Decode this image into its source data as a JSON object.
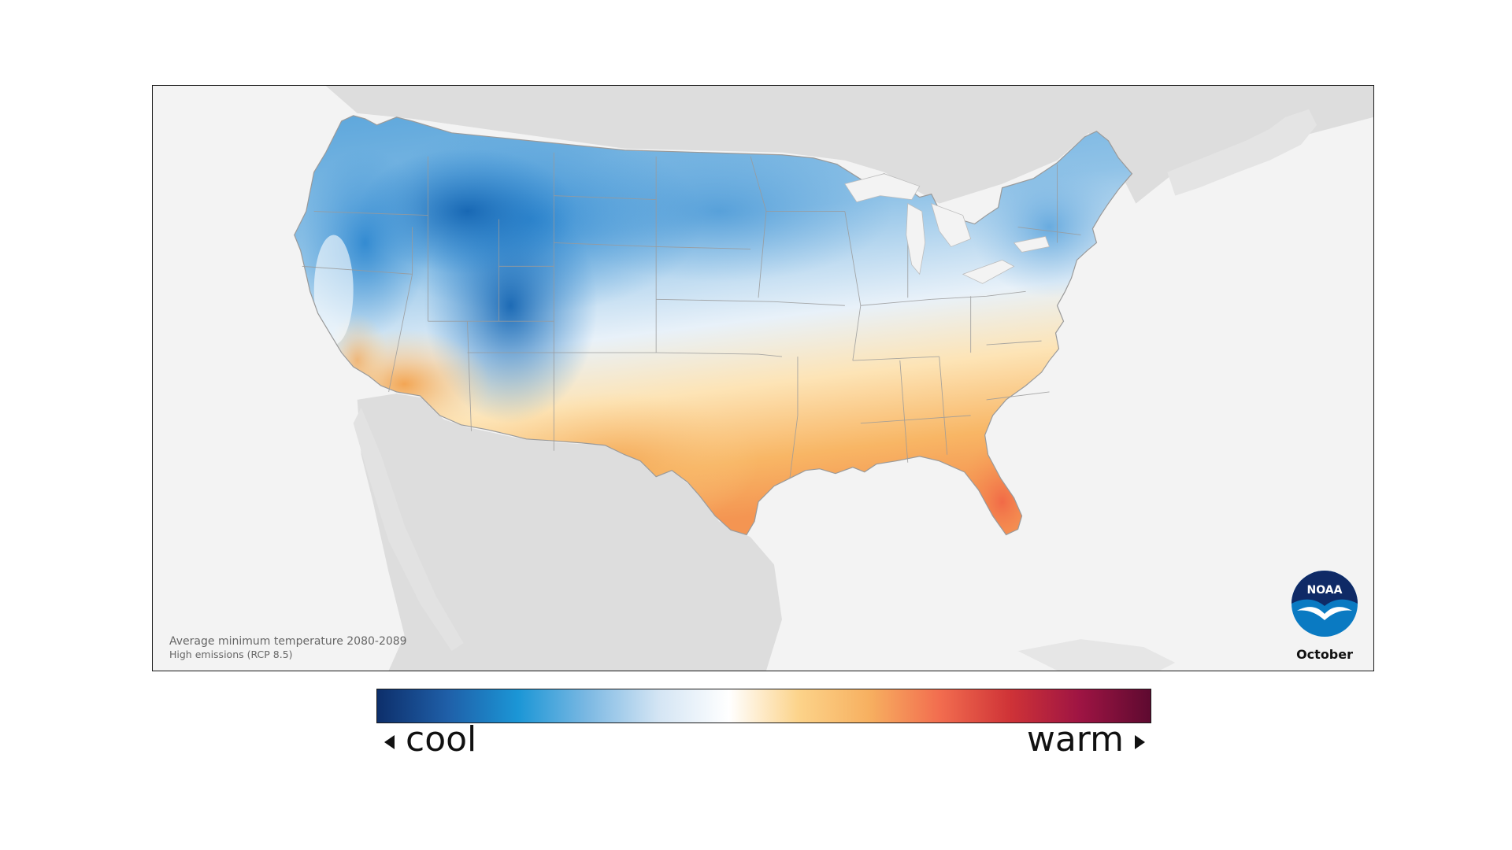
{
  "map": {
    "title": "Average minimum temperature 2080-2089",
    "subtitle": "High emissions (RCP 8.5)",
    "month": "October",
    "logo_text": "NOAA",
    "region": "Contiguous United States",
    "colors": {
      "background": "#f3f3f3",
      "land_outside": "#dcdcdc",
      "state_lines": "#9a9a9a"
    }
  },
  "legend": {
    "low_label": "cool",
    "high_label": "warm",
    "gradient_colors": [
      "#0d2f6b",
      "#1f5fa8",
      "#1b96d6",
      "#7db9e3",
      "#d4e5f4",
      "#ffffff",
      "#fcd38a",
      "#f7b060",
      "#f26d4f",
      "#cf3337",
      "#9e1443",
      "#5e0a30"
    ]
  }
}
